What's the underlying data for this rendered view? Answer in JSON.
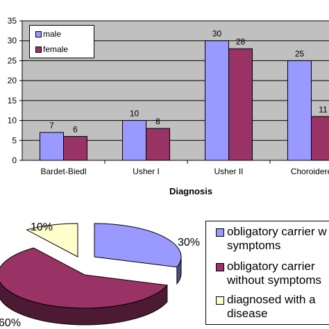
{
  "chart_data": [
    {
      "type": "bar",
      "title": "",
      "xlabel": "Diagnosis",
      "ylabel": "",
      "categories": [
        "Bardet-Biedl",
        "Usher I",
        "Usher II",
        "Choroidere"
      ],
      "series": [
        {
          "name": "male",
          "values": [
            7,
            10,
            30,
            25
          ],
          "color": "#9999ff"
        },
        {
          "name": "female",
          "values": [
            6,
            8,
            28,
            11
          ],
          "color": "#993366"
        }
      ],
      "data_labels": [
        [
          "7",
          "10",
          "30",
          "25"
        ],
        [
          "6",
          "8",
          "28",
          "11"
        ]
      ],
      "yticks": [
        "0",
        "5",
        "10",
        "15",
        "20",
        "25",
        "30",
        "35"
      ],
      "ylim": [
        0,
        35
      ],
      "grid": true,
      "plot_background": "#c0c0c0",
      "legend_position": "top-left"
    },
    {
      "type": "pie",
      "title": "",
      "slices": [
        {
          "label": "obligatory carrier with symptoms",
          "legend_text": [
            "obligatory carrier w",
            "symptoms"
          ],
          "value": 30,
          "value_label": "30%",
          "color": "#9999ff",
          "side_color": "#4d4d80"
        },
        {
          "label": "obligatory carrier without symptoms",
          "legend_text": [
            "obligatory carrier",
            "without symptoms"
          ],
          "value": 60,
          "value_label": "60%",
          "color": "#993366",
          "side_color": "#4d1a33"
        },
        {
          "label": "diagnosed with a disease",
          "legend_text": [
            "diagnosed with a",
            "disease"
          ],
          "value": 10,
          "value_label": "10%",
          "color": "#ffffcc",
          "side_color": "#808066"
        }
      ],
      "legend_position": "right"
    }
  ]
}
